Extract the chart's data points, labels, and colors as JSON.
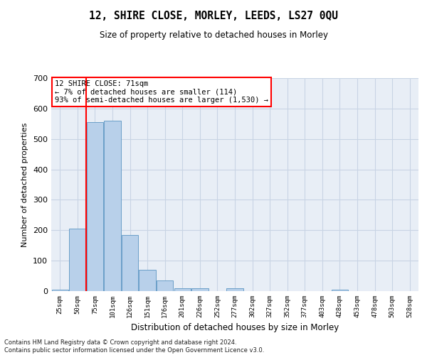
{
  "title": "12, SHIRE CLOSE, MORLEY, LEEDS, LS27 0QU",
  "subtitle": "Size of property relative to detached houses in Morley",
  "xlabel": "Distribution of detached houses by size in Morley",
  "ylabel": "Number of detached properties",
  "categories": [
    "25sqm",
    "50sqm",
    "75sqm",
    "101sqm",
    "126sqm",
    "151sqm",
    "176sqm",
    "201sqm",
    "226sqm",
    "252sqm",
    "277sqm",
    "302sqm",
    "327sqm",
    "352sqm",
    "377sqm",
    "403sqm",
    "428sqm",
    "453sqm",
    "478sqm",
    "503sqm",
    "528sqm"
  ],
  "values": [
    5,
    205,
    555,
    560,
    185,
    70,
    35,
    10,
    10,
    0,
    10,
    0,
    0,
    0,
    0,
    0,
    5,
    0,
    0,
    0,
    0
  ],
  "bar_color": "#b8d0ea",
  "bar_edge_color": "#6a9fc8",
  "grid_color": "#c8d4e4",
  "background_color": "#e8eef6",
  "vline_color": "red",
  "vline_x": 1.5,
  "annotation_text": "12 SHIRE CLOSE: 71sqm\n← 7% of detached houses are smaller (114)\n93% of semi-detached houses are larger (1,530) →",
  "ylim": [
    0,
    700
  ],
  "yticks": [
    0,
    100,
    200,
    300,
    400,
    500,
    600,
    700
  ],
  "footer": "Contains HM Land Registry data © Crown copyright and database right 2024.\nContains public sector information licensed under the Open Government Licence v3.0."
}
